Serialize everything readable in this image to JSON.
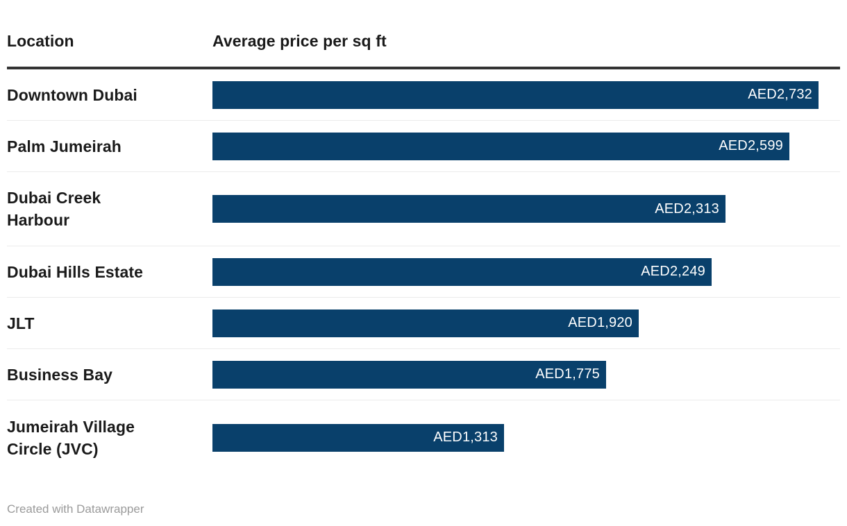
{
  "header": {
    "location_col": "Location",
    "value_col": "Average price per sq ft"
  },
  "footer": {
    "credit": "Created with Datawrapper"
  },
  "colors": {
    "bar": "#09406b",
    "header_rule": "#333333",
    "row_separator": "#ebebeb",
    "label_text": "#1a1a1a",
    "value_text": "#ffffff",
    "credit_text": "#9a9a9a",
    "background": "#ffffff"
  },
  "chart_data": {
    "type": "bar",
    "orientation": "horizontal",
    "title": "",
    "xlabel": "Average price per sq ft",
    "ylabel": "Location",
    "unit": "AED",
    "xlim": [
      0,
      2732
    ],
    "grid": false,
    "legend": false,
    "categories": [
      "Downtown Dubai",
      "Palm Jumeirah",
      "Dubai Creek Harbour",
      "Dubai Hills Estate",
      "JLT",
      "Business Bay",
      "Jumeirah Village Circle (JVC)"
    ],
    "values": [
      2732,
      2599,
      2313,
      2249,
      1920,
      1775,
      1313
    ],
    "rows": [
      {
        "label": "Downtown Dubai",
        "value": 2732,
        "value_label": "AED2,732"
      },
      {
        "label": "Palm Jumeirah",
        "value": 2599,
        "value_label": "AED2,599"
      },
      {
        "label": "Dubai Creek\nHarbour",
        "value": 2313,
        "value_label": "AED2,313"
      },
      {
        "label": "Dubai Hills Estate",
        "value": 2249,
        "value_label": "AED2,249"
      },
      {
        "label": "JLT",
        "value": 1920,
        "value_label": "AED1,920"
      },
      {
        "label": "Business Bay",
        "value": 1775,
        "value_label": "AED1,775"
      },
      {
        "label": "Jumeirah Village\nCircle (JVC)",
        "value": 1313,
        "value_label": "AED1,313"
      }
    ]
  }
}
